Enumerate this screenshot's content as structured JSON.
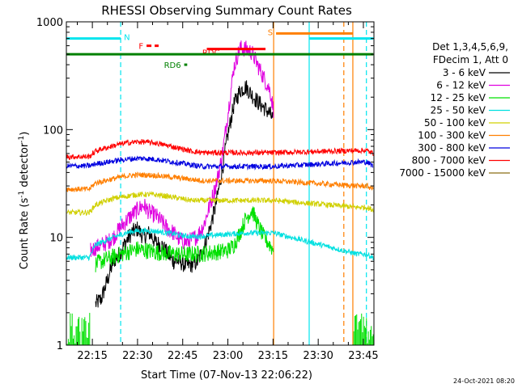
{
  "chart_data": {
    "type": "line",
    "title": "RHESSI Observing Summary Count Rates",
    "xlabel": "Start Time (07-Nov-13 22:06:22)",
    "ylabel_parts": [
      "Count Rate (s",
      "-1",
      " detector",
      "-1",
      ")"
    ],
    "y_scale": "log",
    "ylim": [
      1,
      1000
    ],
    "xlim_min": [
      6.37,
      108.5
    ],
    "x_ticks": [
      {
        "min": 15,
        "label": "22:15"
      },
      {
        "min": 30,
        "label": "22:30"
      },
      {
        "min": 45,
        "label": "22:45"
      },
      {
        "min": 60,
        "label": "23:00"
      },
      {
        "min": 75,
        "label": "23:15"
      },
      {
        "min": 90,
        "label": "23:30"
      },
      {
        "min": 105,
        "label": "23:45"
      }
    ],
    "y_ticks": [
      {
        "value": 1,
        "label": "1"
      },
      {
        "value": 10,
        "label": "10"
      },
      {
        "value": 100,
        "label": "100"
      },
      {
        "value": 1000,
        "label": "1000"
      }
    ],
    "legend": {
      "header": [
        "Det 1,3,4,5,6,9,",
        "FDecim 1, Att 0"
      ],
      "position": "right"
    },
    "series": [
      {
        "name": "3 - 6 keV",
        "color": "#000000",
        "x": [
          6.4,
          10,
          14.4,
          16,
          18,
          20,
          22,
          24,
          26,
          28,
          30,
          32,
          34,
          36,
          38,
          40,
          42,
          44,
          46,
          48,
          50,
          52,
          54,
          56,
          58,
          60,
          62,
          64,
          66,
          68,
          70,
          72,
          74,
          75.2
        ],
        "y": [
          null,
          null,
          null,
          2.4,
          2.7,
          4,
          6,
          7,
          9,
          11,
          12,
          10,
          11,
          9,
          8.5,
          7,
          6,
          6,
          5.5,
          5.6,
          6,
          8,
          12,
          20,
          40,
          90,
          170,
          230,
          250,
          210,
          180,
          160,
          140,
          120
        ]
      },
      {
        "name": "6 - 12 keV",
        "color": "#e000e0",
        "x": [
          14.4,
          16,
          18,
          20,
          22,
          24,
          26,
          28,
          30,
          32,
          34,
          36,
          38,
          40,
          42,
          44,
          46,
          48,
          50,
          52,
          54,
          56,
          58,
          60,
          62,
          64,
          66,
          68,
          70,
          72,
          74,
          75.2
        ],
        "y": [
          7.5,
          8,
          8.5,
          9,
          10,
          12,
          14,
          16,
          18,
          20,
          17,
          16,
          14,
          12,
          11,
          9.5,
          9,
          9.5,
          10.5,
          13,
          20,
          30,
          55,
          140,
          380,
          570,
          560,
          520,
          390,
          300,
          230,
          150
        ]
      },
      {
        "name": "12 - 25 keV",
        "color": "#00e000",
        "x": [
          6.4,
          14.4,
          16,
          18,
          20,
          22,
          24,
          26,
          28,
          30,
          32,
          34,
          36,
          38,
          40,
          42,
          44,
          46,
          48,
          50,
          52,
          54,
          56,
          58,
          60,
          62,
          64,
          66,
          68,
          70,
          72,
          74,
          75.2
        ],
        "y": [
          1.5,
          null,
          5.6,
          6,
          6.3,
          6.6,
          6.9,
          7.2,
          7.5,
          7.8,
          7.6,
          7.5,
          7.3,
          7.2,
          7.1,
          7,
          7,
          6.9,
          7,
          7,
          7.1,
          7.2,
          7.3,
          7.4,
          7.6,
          8.5,
          11,
          15,
          18,
          13,
          10,
          8.5,
          7.5
        ]
      },
      {
        "name": "25 - 50 keV",
        "color": "#00e0e0",
        "x": [
          6.4,
          10,
          14,
          16,
          18,
          20,
          22,
          24,
          26,
          28,
          30,
          32,
          34,
          36,
          38,
          40,
          42,
          44,
          46,
          48,
          50,
          52,
          54,
          56,
          58,
          60,
          62,
          64,
          66,
          68,
          70,
          72,
          74,
          75.2,
          103,
          106,
          108.3
        ],
        "y": [
          6.5,
          6.5,
          6.5,
          8.5,
          9,
          9.5,
          10,
          10.5,
          11,
          11.3,
          11.5,
          11.5,
          11.5,
          11.4,
          11.2,
          11,
          10.8,
          10.5,
          10.3,
          10.2,
          10.2,
          10.3,
          10.4,
          10.5,
          10.6,
          10.7,
          10.8,
          10.9,
          11,
          11,
          11,
          11,
          11,
          11,
          7,
          7,
          6.5
        ]
      },
      {
        "name": "50 - 100 keV",
        "color": "#d0d000",
        "x": [
          6.4,
          10,
          14,
          16,
          18,
          20,
          22,
          24,
          26,
          28,
          30,
          32,
          34,
          36,
          38,
          40,
          42,
          44,
          46,
          48,
          50,
          52,
          54,
          56,
          58,
          60,
          62,
          64,
          66,
          68,
          70,
          72,
          74,
          75.2,
          103,
          106,
          108.3
        ],
        "y": [
          17,
          17,
          17,
          20,
          21,
          22,
          23,
          23.5,
          24,
          24.5,
          25,
          25,
          25,
          24.8,
          24.5,
          24,
          23.5,
          23,
          22.5,
          22,
          22,
          22,
          22,
          22,
          22,
          22,
          22,
          22,
          22,
          22,
          22,
          22,
          22,
          22,
          19,
          19,
          18
        ]
      },
      {
        "name": "100 - 300 keV",
        "color": "#ff7f00",
        "x": [
          6.4,
          10,
          14,
          16,
          18,
          20,
          22,
          24,
          26,
          28,
          30,
          32,
          34,
          36,
          38,
          40,
          42,
          44,
          46,
          48,
          50,
          52,
          54,
          56,
          58,
          60,
          62,
          64,
          66,
          68,
          70,
          72,
          74,
          75.2,
          103,
          106,
          108.3
        ],
        "y": [
          28,
          28,
          28,
          32,
          33,
          34,
          35,
          36,
          37,
          37.5,
          38,
          38,
          37.8,
          37.5,
          37,
          36.5,
          36,
          35.5,
          35,
          34.5,
          34,
          33.5,
          33.5,
          33.5,
          33.5,
          33.5,
          33.5,
          33.5,
          33.5,
          33.5,
          33.5,
          33.5,
          33.5,
          33.5,
          30,
          30,
          28
        ]
      },
      {
        "name": "300 - 800 keV",
        "color": "#0000e0",
        "x": [
          6.4,
          10,
          14,
          16,
          18,
          20,
          22,
          24,
          26,
          28,
          30,
          32,
          34,
          36,
          38,
          40,
          42,
          44,
          46,
          48,
          50,
          52,
          54,
          56,
          58,
          60,
          62,
          64,
          66,
          68,
          70,
          72,
          74,
          75.2,
          103,
          106,
          108.3
        ],
        "y": [
          46,
          46,
          46,
          48,
          49,
          50,
          51,
          52,
          53,
          53.5,
          54,
          54,
          53.5,
          53,
          52,
          51,
          50,
          49,
          48,
          47,
          46,
          45.5,
          45.5,
          45.5,
          45.5,
          45.5,
          45.5,
          45.5,
          45.5,
          45.5,
          45.5,
          45.5,
          45.5,
          45.5,
          50,
          50,
          46
        ]
      },
      {
        "name": "800 - 7000 keV",
        "color": "#ff0000",
        "x": [
          6.4,
          10,
          14,
          16,
          18,
          20,
          22,
          24,
          26,
          28,
          30,
          32,
          34,
          36,
          38,
          40,
          42,
          44,
          46,
          48,
          50,
          52,
          54,
          56,
          58,
          60,
          62,
          64,
          66,
          68,
          70,
          72,
          74,
          75.2,
          103,
          106,
          108.3
        ],
        "y": [
          56,
          56,
          56,
          63,
          66,
          68,
          71,
          73,
          75,
          76,
          77,
          77,
          76,
          75,
          73,
          71,
          69,
          67,
          65,
          63,
          62,
          61,
          61,
          61,
          61,
          61,
          61,
          61,
          61,
          61,
          61,
          61,
          61,
          61,
          64,
          64,
          60
        ]
      },
      {
        "name": "7000 - 15000 keV",
        "color": "#8b6d14",
        "x": [],
        "y": []
      }
    ],
    "annotations": [
      {
        "label": "N",
        "color": "#00e5ee",
        "segments": [
          [
            6.4,
            24.4
          ],
          [
            87,
            108.3
          ]
        ],
        "y": 700
      },
      {
        "label": "F",
        "color": "#ff0000",
        "segments": [
          [
            33,
            37
          ]
        ],
        "y": 600,
        "dashed": true
      },
      {
        "label": "RD6",
        "color": "#008000",
        "segments": [
          [
            45.5,
            46.5
          ]
        ],
        "y": 400
      },
      {
        "label": "RDC",
        "color": "#ff0000",
        "segments": [
          [
            53,
            72.5
          ]
        ],
        "y": 560
      },
      {
        "label": "S",
        "color": "#ff7f00",
        "segments": [
          [
            76,
            101.5
          ]
        ],
        "y": 780
      },
      {
        "label": "",
        "color": "#008000",
        "segments": [
          [
            6.4,
            108.3
          ]
        ],
        "y": 500
      }
    ],
    "vlines": [
      {
        "x": 24.4,
        "color": "#00e5ee",
        "dashed": true
      },
      {
        "x": 75.2,
        "color": "#ff7f00",
        "dashed": false
      },
      {
        "x": 87,
        "color": "#00e5ee",
        "dashed": false
      },
      {
        "x": 98.5,
        "color": "#ff7f00",
        "dashed": true
      },
      {
        "x": 101.5,
        "color": "#ff7f00",
        "dashed": false
      },
      {
        "x": 106,
        "color": "#00e5ee",
        "dashed": true
      }
    ],
    "footer_timestamp": "24-Oct-2021 08:20"
  }
}
